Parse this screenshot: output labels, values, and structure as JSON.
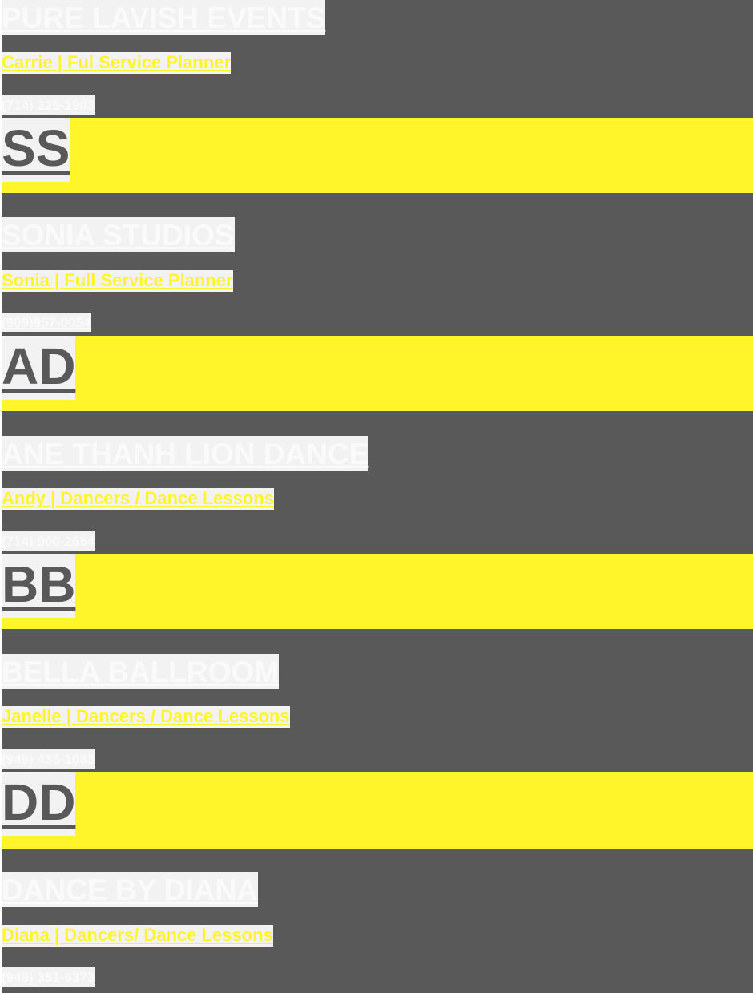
{
  "vendors": [
    {
      "name": "PURE LAVISH EVENTS",
      "contact": "Carrie   |   Ful Service Planner",
      "phone": "(714) 225-1903",
      "next_monogram": "SS"
    },
    {
      "name": "SONIA STUDIOS",
      "contact": "Sonia   |   Full Service Planner",
      "phone": "(909)957-0054",
      "next_monogram": "AD"
    },
    {
      "name": "ANE THANH LION DANCE",
      "contact": "Andy   |  Dancers / Dance Lessons",
      "phone": "(714) 900-2654",
      "next_monogram": "BB"
    },
    {
      "name": "BELLA BALLROOM",
      "contact": "Janelle   | Dancers / Dance Lessons",
      "phone": "(949) 436-1083",
      "next_monogram": "DD"
    },
    {
      "name": "DANCE BY DIANA",
      "contact": "Diana  | Dancers/ Dance Lessons",
      "phone": "(949) 351-6373"
    }
  ],
  "colors": {
    "panel": "#595959",
    "accent_yellow": "#fff52a",
    "highlight": "#f2f2f2",
    "text_light": "#fafafa"
  }
}
